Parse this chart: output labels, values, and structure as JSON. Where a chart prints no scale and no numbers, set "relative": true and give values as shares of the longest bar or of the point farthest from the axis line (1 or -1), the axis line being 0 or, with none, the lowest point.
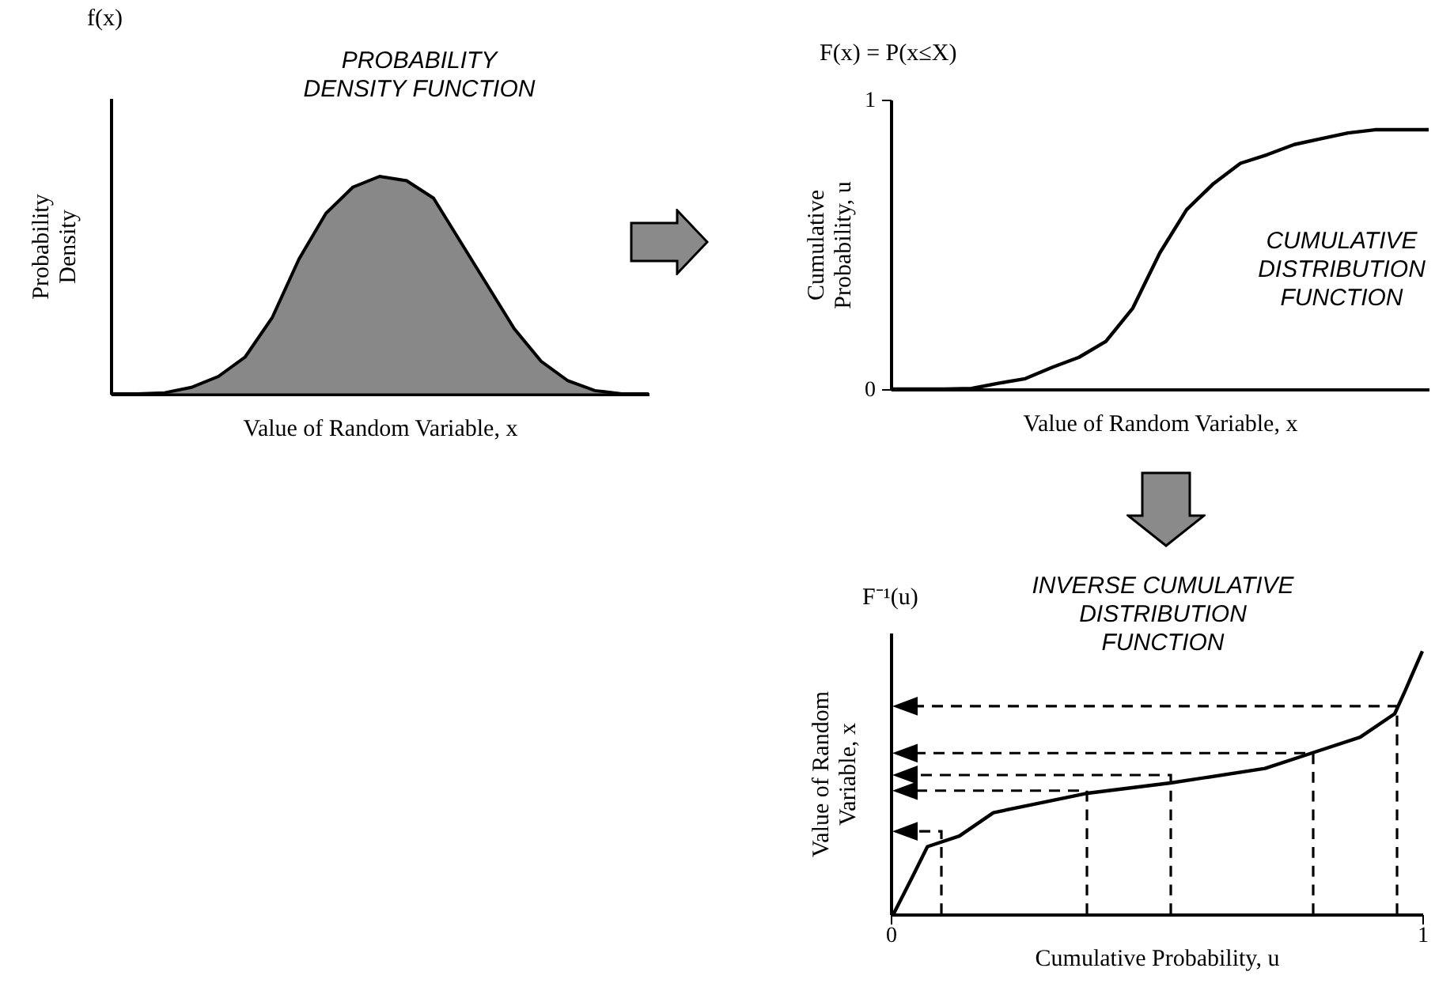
{
  "chart_data": [
    {
      "type": "area",
      "title": "PROBABILITY\nDENSITY FUNCTION",
      "xlabel": "Value of Random Variable, x",
      "ylabel": "Probability\nDensity",
      "annotations": [
        "f(x)"
      ],
      "relative": true,
      "categories": [
        null,
        null,
        null,
        null,
        null,
        null,
        null,
        null,
        null,
        null,
        null,
        null,
        null,
        null,
        null,
        null,
        null,
        null,
        null,
        null,
        null
      ],
      "series": [
        {
          "color": "#555555",
          "values": [
            0,
            0,
            0.005,
            0.03,
            0.08,
            0.17,
            0.35,
            0.62,
            0.83,
            0.95,
            1.0,
            0.98,
            0.9,
            0.7,
            0.5,
            0.3,
            0.15,
            0.06,
            0.015,
            0,
            0
          ]
        }
      ]
    },
    {
      "type": "line",
      "title": "CUMULATIVE\nDISTRIBUTION\nFUNCTION",
      "xlabel": "Value of Random Variable, x",
      "ylabel": "Cumulative\nProbability, u",
      "annotations": [
        "F(x) = P(x≤X)"
      ],
      "categories": [
        null,
        null,
        null,
        null,
        null,
        null,
        null,
        null,
        null,
        null,
        null,
        null,
        null,
        null,
        null,
        null,
        null,
        null,
        null,
        null,
        null
      ],
      "ylim": [
        0,
        1
      ],
      "yticks": [
        0,
        1
      ],
      "series": [
        {
          "color": "#000000",
          "values": [
            0,
            0,
            0,
            0.002,
            0.02,
            0.036,
            0.075,
            0.11,
            0.165,
            0.28,
            0.47,
            0.62,
            0.71,
            0.78,
            0.81,
            0.845,
            0.865,
            0.885,
            0.896,
            0.896,
            0.896
          ]
        }
      ]
    },
    {
      "type": "line",
      "title": "INVERSE CUMULATIVE\nDISTRIBUTION\nFUNCTION",
      "xlabel": "Cumulative Probability, u",
      "ylabel": "Value of Random\nVariable, x",
      "annotations": [
        "F⁻¹(u)"
      ],
      "relative": true,
      "xlim": [
        0,
        1
      ],
      "xticks": [
        0,
        1
      ],
      "series": [
        {
          "color": "#000000",
          "x": [
            0.005,
            0.04,
            0.069,
            0.129,
            0.193,
            0.367,
            0.526,
            0.704,
            0.794,
            0.883,
            0.948,
            0.968,
            1.0
          ],
          "values": [
            0,
            0.139,
            0.257,
            0.297,
            0.386,
            0.459,
            0.499,
            0.554,
            0.614,
            0.673,
            0.762,
            0.851,
            1.0
          ]
        }
      ]
    }
  ]
}
